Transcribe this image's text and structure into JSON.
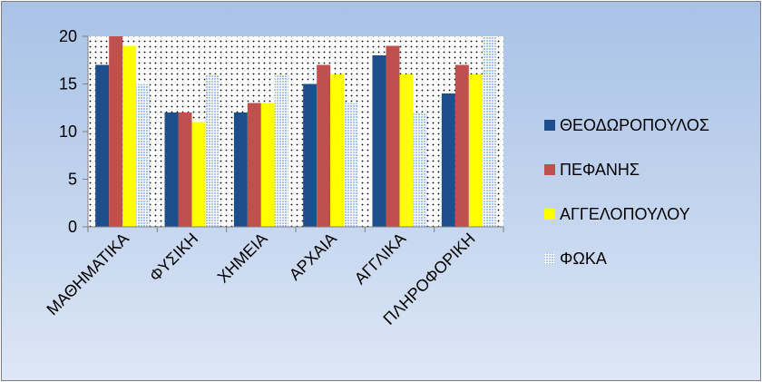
{
  "chart_data": {
    "type": "bar",
    "categories": [
      "ΜΑΘΗΜΑΤΙΚΑ",
      "ΦΥΣΙΚΗ",
      "ΧΗΜΕΙΑ",
      "ΑΡΧΑΙΑ",
      "ΑΓΓΛΙΚΑ",
      "ΠΛΗΡΟΦΟΡΙΚΗ"
    ],
    "series": [
      {
        "name": "ΘΕΟΔΩΡΟΠΟΥΛΟΣ",
        "color": "#1f4e8c",
        "pattern": "solid",
        "values": [
          17,
          12,
          12,
          15,
          18,
          14
        ]
      },
      {
        "name": "ΠΕΦΑΝΗΣ",
        "color": "#c0504d",
        "pattern": "solid",
        "values": [
          20,
          12,
          13,
          17,
          19,
          17
        ]
      },
      {
        "name": "ΑΓΓΕΛΟΠΟΥΛΟΥ",
        "color": "#ffff00",
        "pattern": "solid",
        "values": [
          19,
          11,
          13,
          16,
          16,
          16
        ]
      },
      {
        "name": "ΦΩΚΑ",
        "color": "#a7c4ec",
        "pattern": "dotted",
        "values": [
          15,
          16,
          16,
          13,
          12,
          20
        ]
      }
    ],
    "yticks": [
      0,
      5,
      10,
      15,
      20
    ],
    "ylim": [
      0,
      20
    ],
    "title": "",
    "xlabel": "",
    "ylabel": "",
    "legend_position": "right",
    "plot_background": "white with dot pattern",
    "grid": false
  }
}
